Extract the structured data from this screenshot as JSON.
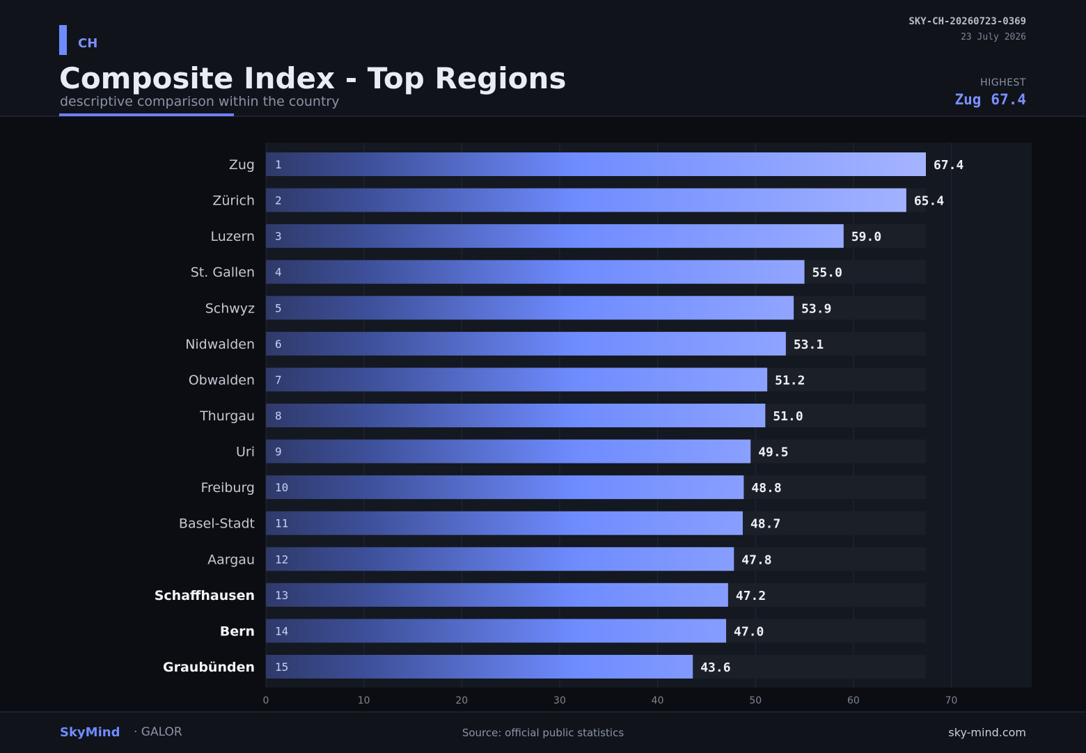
{
  "header": {
    "country_code": "CH",
    "title": "Composite Index - Top Regions",
    "subtitle": "descriptive comparison within the country",
    "ref_id": "SKY-CH-20260723-0369",
    "ref_date": "23 July 2026",
    "highest_label": "HIGHEST",
    "highest_region": "Zug",
    "highest_value": "67.4"
  },
  "chart_data": {
    "type": "bar",
    "orientation": "horizontal",
    "categories": [
      "Zug",
      "Zürich",
      "Luzern",
      "St. Gallen",
      "Schwyz",
      "Nidwalden",
      "Obwalden",
      "Thurgau",
      "Uri",
      "Freiburg",
      "Basel-Stadt",
      "Aargau",
      "Schaffhausen",
      "Bern",
      "Graubünden"
    ],
    "ranks": [
      "1",
      "2",
      "3",
      "4",
      "5",
      "6",
      "7",
      "8",
      "9",
      "10",
      "11",
      "12",
      "13",
      "14",
      "15"
    ],
    "values": [
      67.4,
      65.4,
      59.0,
      55.0,
      53.9,
      53.1,
      51.2,
      51.0,
      49.5,
      48.8,
      48.7,
      47.8,
      47.2,
      47.0,
      43.6
    ],
    "value_labels": [
      "67.4",
      "65.4",
      "59.0",
      "55.0",
      "53.9",
      "53.1",
      "51.2",
      "51.0",
      "49.5",
      "48.8",
      "48.7",
      "47.8",
      "47.2",
      "47.0",
      "43.6"
    ],
    "highlighted_categories": [
      "Schaffhausen",
      "Bern",
      "Graubünden"
    ],
    "x_ticks": [
      0,
      10,
      20,
      30,
      40,
      50,
      60,
      70
    ],
    "xlim": [
      0,
      78
    ],
    "track_max": 67.4,
    "grid": true,
    "colors": {
      "bar_start": "#2f3a6a",
      "bar_mid": "#6f8cff",
      "bar_end": "#a5b4ff",
      "track": "#1b1f28",
      "text": "#e9ecf2",
      "label": "#c4c9d4"
    }
  },
  "footer": {
    "brand": "SkyMind",
    "brand_sub": "· GALOR",
    "source": "Source: official public statistics",
    "site": "sky-mind.com"
  }
}
